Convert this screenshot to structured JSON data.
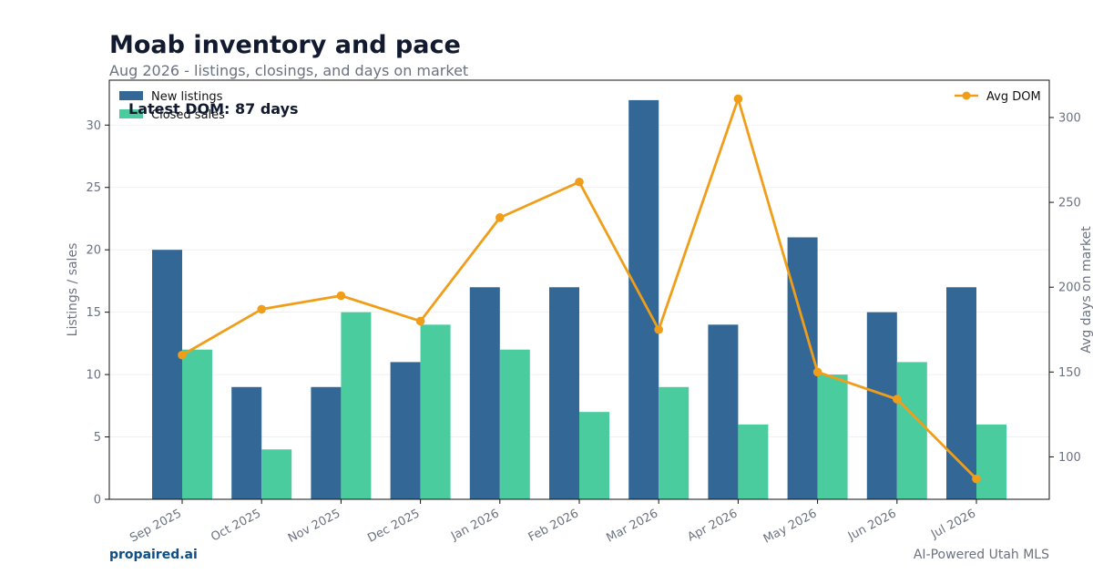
{
  "header": {
    "title": "Moab inventory and pace",
    "subtitle": "Aug 2026 - listings, closings, and days on market"
  },
  "footer": {
    "brand": "propaired.ai",
    "source": "AI-Powered Utah MLS"
  },
  "colors": {
    "new_listings": "#336795",
    "closed_sales": "#4bcc9e",
    "avg_dom": "#f09e1a",
    "title": "#111a2e",
    "muted": "#6b7280"
  },
  "chart_data": {
    "type": "bar",
    "categories": [
      "Sep 2025",
      "Oct 2025",
      "Nov 2025",
      "Dec 2025",
      "Jan 2026",
      "Feb 2026",
      "Mar 2026",
      "Apr 2026",
      "May 2026",
      "Jun 2026",
      "Jul 2026"
    ],
    "series": [
      {
        "name": "New listings",
        "type": "bar",
        "axis": "left",
        "values": [
          20,
          9,
          9,
          11,
          17,
          17,
          32,
          14,
          21,
          15,
          17
        ]
      },
      {
        "name": "Closed sales",
        "type": "bar",
        "axis": "left",
        "values": [
          12,
          4,
          15,
          14,
          12,
          7,
          9,
          6,
          10,
          11,
          6
        ]
      },
      {
        "name": "Avg DOM",
        "type": "line",
        "axis": "right",
        "values": [
          160,
          187,
          195,
          180,
          241,
          262,
          175,
          311,
          150,
          134,
          87
        ]
      }
    ],
    "ylabel": "Listings / sales",
    "y2label": "Avg days on market",
    "ylim": [
      0,
      33.6
    ],
    "y2lim": [
      75,
      322
    ],
    "yticks": [
      "0",
      "5",
      "10",
      "15",
      "20",
      "25",
      "30"
    ],
    "y2ticks": [
      "100",
      "150",
      "200",
      "250",
      "300"
    ],
    "annotation": "Latest DOM: 87 days",
    "legend_left": "top-left",
    "legend_right": "top-right",
    "grid": true
  }
}
